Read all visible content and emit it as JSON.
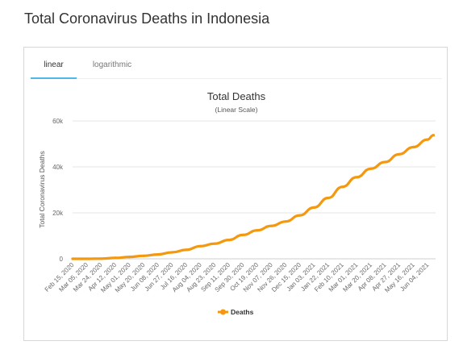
{
  "page": {
    "title": "Total Coronavirus Deaths in Indonesia"
  },
  "tabs": [
    {
      "label": "linear"
    },
    {
      "label": "logarithmic"
    }
  ],
  "chart_data": {
    "type": "line",
    "title": "Total Deaths",
    "subtitle": "(Linear Scale)",
    "xlabel": "",
    "ylabel": "Total Coronavirus Deaths",
    "ylim": [
      0,
      60000
    ],
    "yticks": [
      0,
      20000,
      40000,
      60000
    ],
    "ytick_labels": [
      "0",
      "20k",
      "40k",
      "60k"
    ],
    "xtick_labels": [
      "Feb 15, 2020",
      "Mar 05, 2020",
      "Mar 24, 2020",
      "Apr 12, 2020",
      "May 01, 2020",
      "May 20, 2020",
      "Jun 08, 2020",
      "Jun 27, 2020",
      "Jul 16, 2020",
      "Aug 04, 2020",
      "Aug 23, 2020",
      "Sep 11, 2020",
      "Sep 30, 2020",
      "Oct 19, 2020",
      "Nov 07, 2020",
      "Nov 26, 2020",
      "Dec 15, 2020",
      "Jan 03, 2021",
      "Jan 22, 2021",
      "Feb 10, 2021",
      "Mar 01, 2021",
      "Mar 20, 2021",
      "Apr 08, 2021",
      "Apr 27, 2021",
      "May 16, 2021",
      "Jun 04, 2021"
    ],
    "x_range": [
      "2020-02-15",
      "2021-06-12"
    ],
    "grid": true,
    "legend": "bottom-center",
    "series": [
      {
        "name": "Deaths",
        "color": "#f4990f",
        "x": [
          "2020-02-15",
          "2020-03-05",
          "2020-03-24",
          "2020-04-12",
          "2020-05-01",
          "2020-05-20",
          "2020-06-08",
          "2020-06-27",
          "2020-07-16",
          "2020-08-04",
          "2020-08-23",
          "2020-09-11",
          "2020-09-30",
          "2020-10-19",
          "2020-11-07",
          "2020-11-26",
          "2020-12-15",
          "2021-01-03",
          "2021-01-22",
          "2021-02-10",
          "2021-03-01",
          "2021-03-20",
          "2021-04-08",
          "2021-04-27",
          "2021-05-16",
          "2021-06-04",
          "2021-06-12"
        ],
        "values": [
          0,
          0,
          60,
          400,
          800,
          1300,
          1900,
          2800,
          3900,
          5500,
          6600,
          8200,
          10400,
          12400,
          14300,
          16200,
          18900,
          22300,
          26500,
          31300,
          35500,
          39200,
          42100,
          45500,
          48600,
          51900,
          53800
        ]
      }
    ]
  }
}
